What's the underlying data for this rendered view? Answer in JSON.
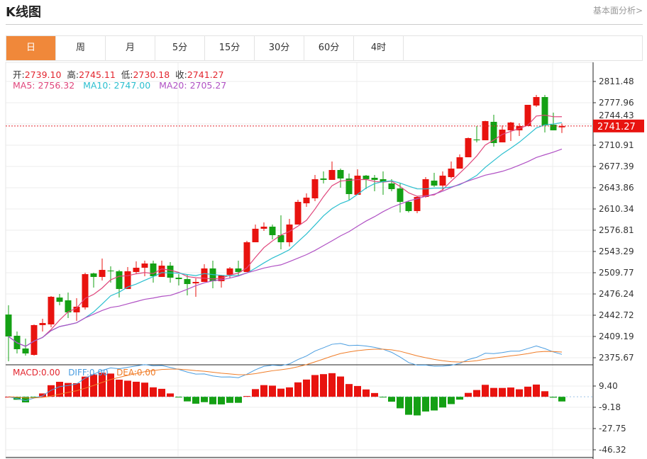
{
  "header": {
    "title": "K线图",
    "fundamental_link": "基本面分析>"
  },
  "tabs": [
    {
      "label": "日",
      "active": true
    },
    {
      "label": "周"
    },
    {
      "label": "月"
    },
    {
      "label": "5分"
    },
    {
      "label": "15分"
    },
    {
      "label": "30分"
    },
    {
      "label": "60分"
    },
    {
      "label": "4时"
    }
  ],
  "info": {
    "open_label": "开:",
    "open": "2739.10",
    "high_label": "高:",
    "high": "2745.11",
    "low_label": "低:",
    "low": "2730.18",
    "close_label": "收:",
    "close": "2741.27",
    "ma5": "MA5: 2756.32",
    "ma10": "MA10: 2747.00",
    "ma20": "MA20: 2705.27"
  },
  "macd_info": {
    "macd": "MACD:0.00",
    "diff": "DIFF:0.00",
    "dea": "DEA:0.00"
  },
  "colors": {
    "up": "#e8130f",
    "down": "#14a014",
    "ma5": "#e0457b",
    "ma10": "#2bbfcf",
    "ma20": "#b051c4",
    "diff": "#4a9de0",
    "dea": "#f07d28",
    "accent": "#f0883a"
  },
  "price_axis": [
    "2811.48",
    "2777.96",
    "2744.43",
    "2710.91",
    "2677.39",
    "2643.86",
    "2610.34",
    "2576.81",
    "2543.29",
    "2509.77",
    "2476.24",
    "2442.72",
    "2409.19",
    "2375.67"
  ],
  "last_price": "2741.27",
  "macd_axis": [
    "9.40",
    "-9.18",
    "-27.75",
    "-46.32"
  ],
  "chart_data": {
    "type": "candlestick",
    "ylim": [
      2375.67,
      2811.48
    ],
    "macd_ylim": [
      -46.32,
      9.4
    ],
    "ohlc": [
      [
        2443.8,
        2458.4,
        2370.1,
        2409.2
      ],
      [
        2410.3,
        2417.0,
        2382.4,
        2389.1
      ],
      [
        2390.2,
        2405.8,
        2379.0,
        2382.4
      ],
      [
        2380.1,
        2428.0,
        2379.0,
        2427.1
      ],
      [
        2427.1,
        2437.1,
        2417.0,
        2430.4
      ],
      [
        2428.2,
        2472.9,
        2423.7,
        2471.8
      ],
      [
        2470.6,
        2476.2,
        2458.4,
        2463.9
      ],
      [
        2466.2,
        2478.5,
        2438.2,
        2447.2
      ],
      [
        2447.2,
        2469.5,
        2433.8,
        2456.1
      ],
      [
        2455.0,
        2509.8,
        2451.7,
        2507.5
      ],
      [
        2508.6,
        2509.8,
        2486.3,
        2503.1
      ],
      [
        2503.1,
        2532.1,
        2497.5,
        2514.2
      ],
      [
        2513.1,
        2519.8,
        2494.1,
        2512.0
      ],
      [
        2512.0,
        2514.2,
        2470.6,
        2484.1
      ],
      [
        2484.1,
        2518.7,
        2484.1,
        2512.0
      ],
      [
        2510.9,
        2527.6,
        2507.5,
        2517.6
      ],
      [
        2517.6,
        2528.8,
        2504.2,
        2524.3
      ],
      [
        2524.3,
        2528.8,
        2494.1,
        2504.2
      ],
      [
        2503.1,
        2528.8,
        2503.1,
        2520.9
      ],
      [
        2520.9,
        2526.5,
        2494.1,
        2501.9
      ],
      [
        2501.9,
        2507.5,
        2489.6,
        2499.7
      ],
      [
        2499.7,
        2506.4,
        2474.0,
        2491.9
      ],
      [
        2493.0,
        2500.8,
        2471.8,
        2495.2
      ],
      [
        2495.2,
        2523.2,
        2495.2,
        2516.5
      ],
      [
        2516.5,
        2528.8,
        2485.2,
        2496.4
      ],
      [
        2496.4,
        2506.4,
        2486.3,
        2505.3
      ],
      [
        2506.4,
        2518.7,
        2500.8,
        2516.5
      ],
      [
        2516.5,
        2528.8,
        2504.2,
        2510.9
      ],
      [
        2510.9,
        2560.0,
        2510.9,
        2557.8
      ],
      [
        2557.8,
        2585.8,
        2557.8,
        2579.1
      ],
      [
        2579.1,
        2589.1,
        2575.7,
        2582.4
      ],
      [
        2582.4,
        2585.8,
        2562.3,
        2569.0
      ],
      [
        2569.0,
        2600.3,
        2546.6,
        2557.8
      ],
      [
        2557.8,
        2594.7,
        2551.1,
        2585.8
      ],
      [
        2585.8,
        2624.9,
        2585.8,
        2621.5
      ],
      [
        2619.3,
        2634.9,
        2613.7,
        2628.2
      ],
      [
        2627.1,
        2664.0,
        2622.6,
        2657.3
      ],
      [
        2658.4,
        2669.6,
        2650.6,
        2656.2
      ],
      [
        2656.2,
        2685.2,
        2656.2,
        2671.8
      ],
      [
        2671.8,
        2674.0,
        2643.9,
        2658.4
      ],
      [
        2658.4,
        2666.2,
        2624.9,
        2633.8
      ],
      [
        2632.7,
        2672.9,
        2632.7,
        2662.9
      ],
      [
        2662.9,
        2664.0,
        2641.6,
        2657.3
      ],
      [
        2659.5,
        2664.0,
        2638.3,
        2656.2
      ],
      [
        2657.3,
        2669.6,
        2632.7,
        2652.8
      ],
      [
        2650.6,
        2657.3,
        2638.3,
        2641.6
      ],
      [
        2642.7,
        2651.7,
        2604.8,
        2621.5
      ],
      [
        2621.5,
        2623.7,
        2604.8,
        2607.0
      ],
      [
        2607.0,
        2630.5,
        2603.6,
        2629.3
      ],
      [
        2629.3,
        2660.6,
        2628.2,
        2657.3
      ],
      [
        2655.0,
        2667.3,
        2645.0,
        2647.2
      ],
      [
        2647.2,
        2669.6,
        2639.4,
        2662.9
      ],
      [
        2660.6,
        2685.2,
        2658.4,
        2674.0
      ],
      [
        2674.0,
        2696.4,
        2674.0,
        2691.9
      ],
      [
        2691.9,
        2723.0,
        2691.9,
        2722.1
      ],
      [
        2719.9,
        2741.1,
        2715.4,
        2718.7
      ],
      [
        2718.7,
        2749.5,
        2718.7,
        2748.9
      ],
      [
        2747.8,
        2759.0,
        2708.7,
        2714.3
      ],
      [
        2715.4,
        2742.2,
        2715.4,
        2735.5
      ],
      [
        2734.4,
        2747.8,
        2717.6,
        2746.7
      ],
      [
        2734.4,
        2745.6,
        2725.4,
        2741.1
      ],
      [
        2741.1,
        2774.6,
        2741.1,
        2774.6
      ],
      [
        2773.5,
        2790.3,
        2771.3,
        2786.9
      ],
      [
        2786.9,
        2790.3,
        2731.0,
        2742.2
      ],
      [
        2743.3,
        2762.3,
        2734.4,
        2734.4
      ],
      [
        2739.1,
        2745.11,
        2730.18,
        2741.27
      ]
    ]
  }
}
